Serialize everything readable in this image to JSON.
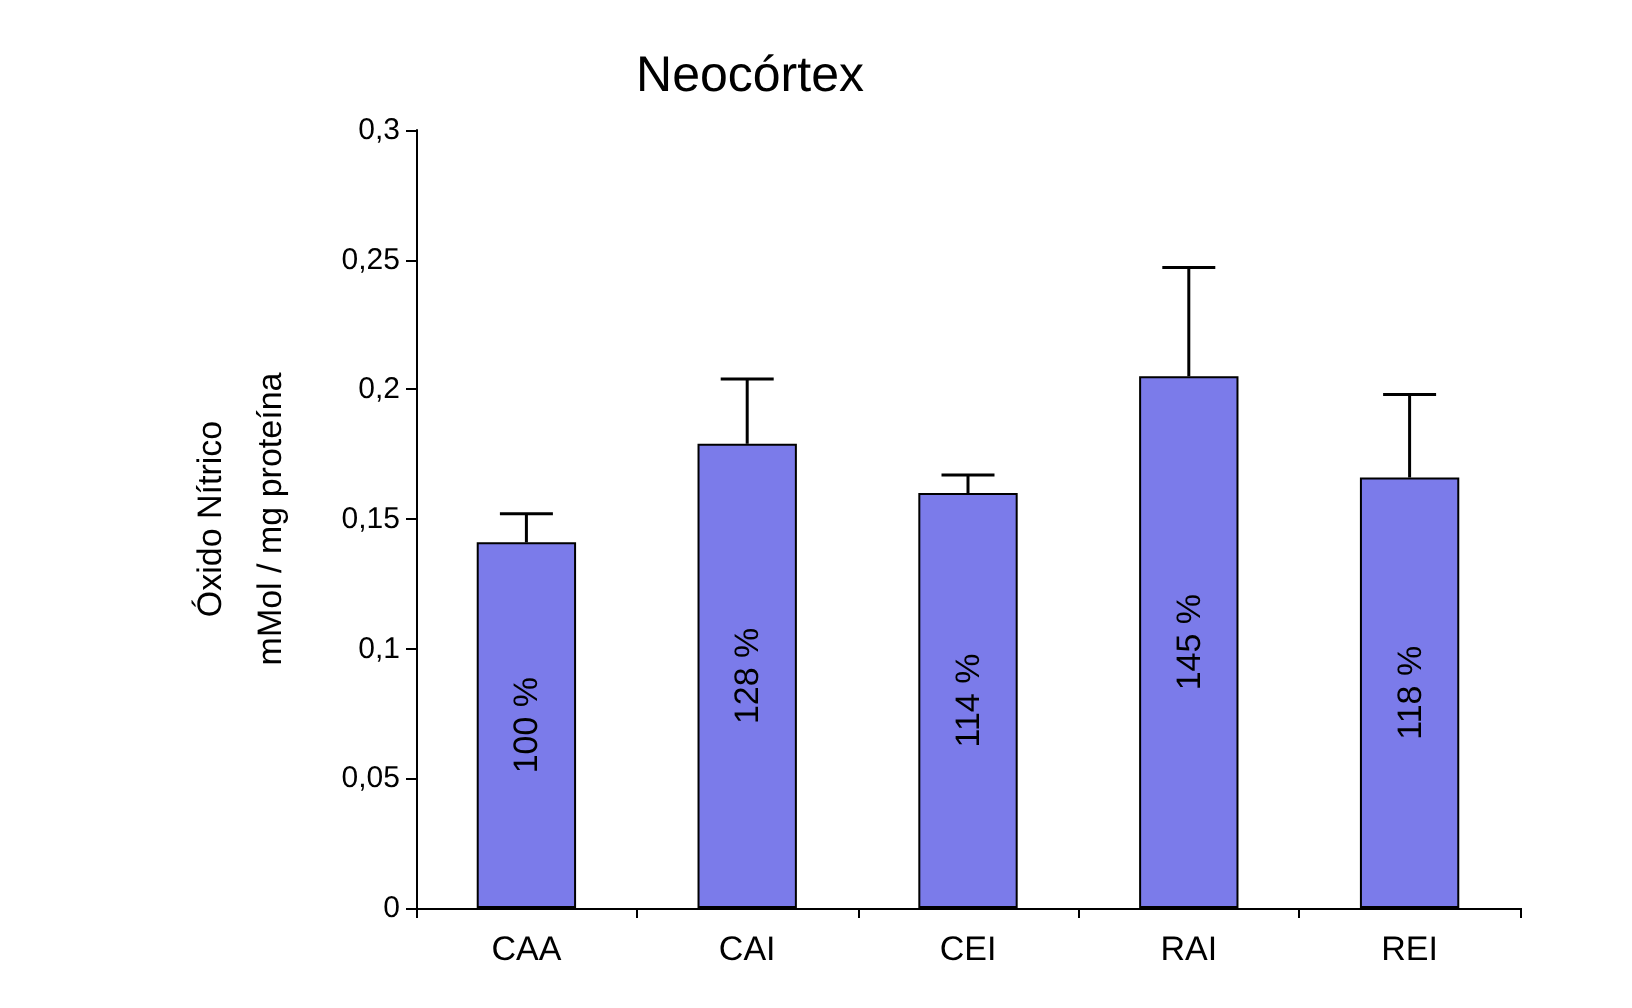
{
  "chart_data": {
    "type": "bar",
    "title": "Neocórtex",
    "ylabel": "Óxido Nítrico\nmMol / mg proteína",
    "categories": [
      "CAA",
      "CAI",
      "CEI",
      "RAI",
      "REI"
    ],
    "values": [
      0.141,
      0.179,
      0.16,
      0.205,
      0.166
    ],
    "errors": [
      [
        0.141,
        0.152
      ],
      [
        0.179,
        0.204
      ],
      [
        0.16,
        0.167
      ],
      [
        0.205,
        0.247
      ],
      [
        0.166,
        0.198
      ]
    ],
    "annotations": [
      "100 %",
      "128 %",
      "114 %",
      "145 %",
      "118 %"
    ],
    "color": "#7b7bea",
    "ylim": [
      0,
      0.3
    ],
    "yticks": [
      {
        "value": 0,
        "label": "0"
      },
      {
        "value": 0.05,
        "label": "0,05"
      },
      {
        "value": 0.1,
        "label": "0,1"
      },
      {
        "value": 0.15,
        "label": "0,15"
      },
      {
        "value": 0.2,
        "label": "0,2"
      },
      {
        "value": 0.25,
        "label": "0,25"
      },
      {
        "value": 0.3,
        "label": "0,3"
      }
    ],
    "grid": false
  }
}
